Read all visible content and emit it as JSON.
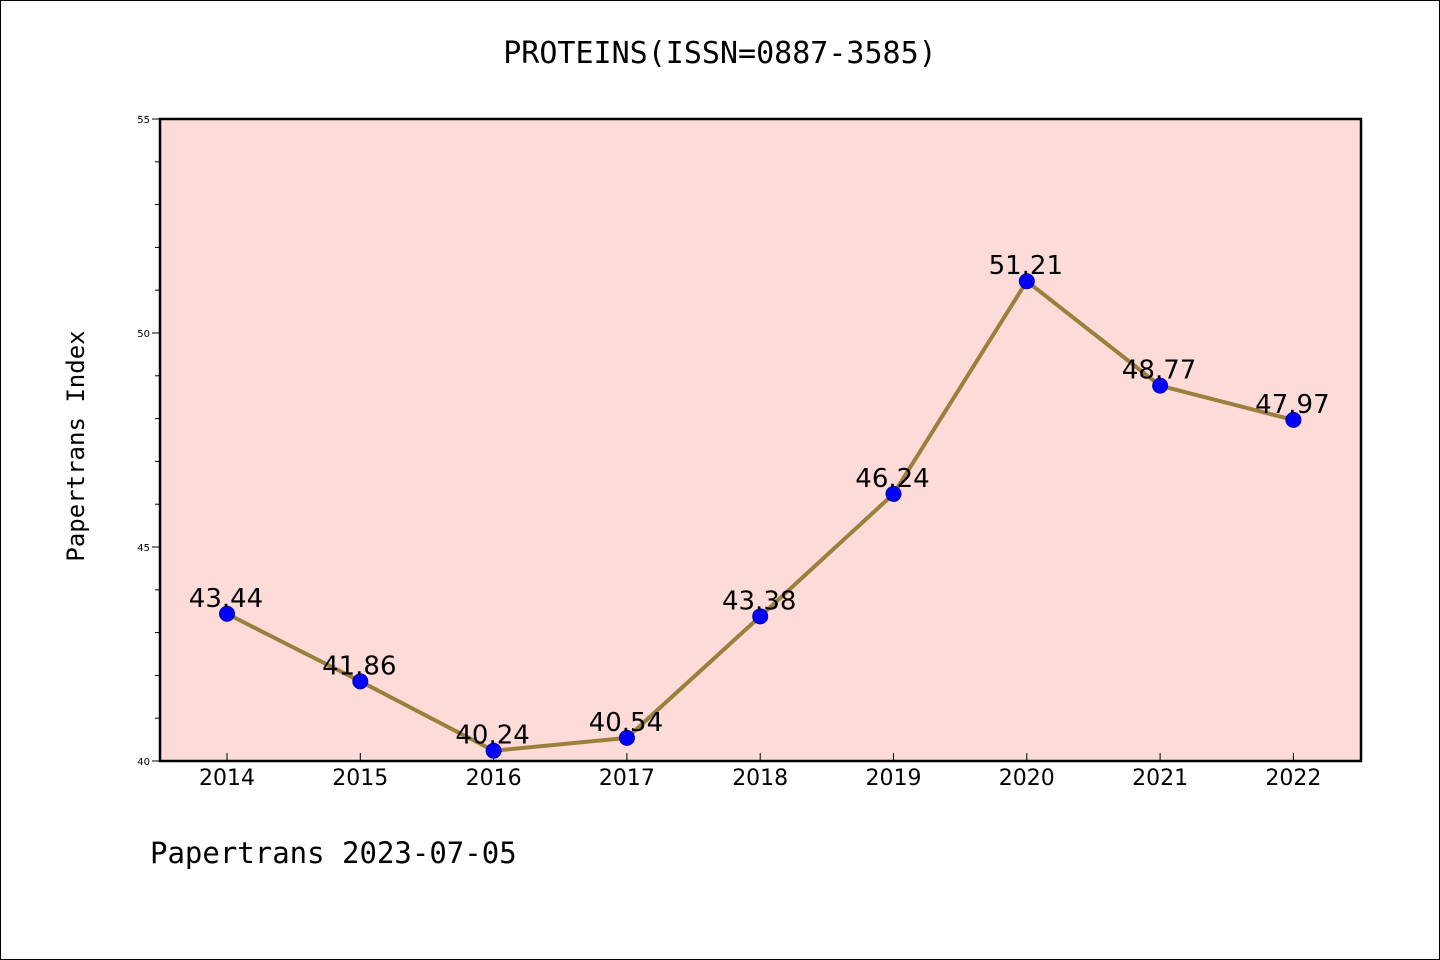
{
  "chart_data": {
    "type": "line",
    "title": "PROTEINS(ISSN=0887-3585)",
    "ylabel": "Papertrans Index",
    "xlabel": "",
    "categories": [
      "2014",
      "2015",
      "2016",
      "2017",
      "2018",
      "2019",
      "2020",
      "2021",
      "2022"
    ],
    "values": [
      43.44,
      41.86,
      40.24,
      40.54,
      43.38,
      46.24,
      51.21,
      48.77,
      47.97
    ],
    "value_labels": [
      "43.44",
      "41.86",
      "40.24",
      "40.54",
      "43.38",
      "46.24",
      "51.21",
      "48.77",
      "47.97"
    ],
    "ylim": [
      40,
      55
    ],
    "yticks": [
      "40",
      "45",
      "50",
      "55"
    ],
    "grid": false,
    "legend": "none",
    "colors": {
      "plot_background": "#fddbd8",
      "line": "#9b7f3b",
      "marker": "#0000ff"
    }
  },
  "footer": "Papertrans 2023-07-05"
}
